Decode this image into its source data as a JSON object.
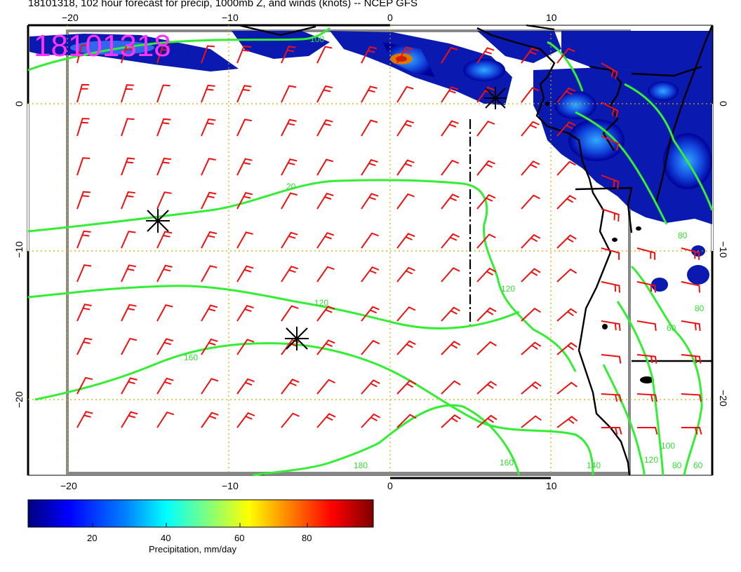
{
  "title": "18101318, 102 hour forecast for precip, 1000mb Z, and winds (knots) -- NCEP GFS",
  "stamp": "18101318",
  "axes": {
    "top_ticks": [
      "−20",
      "−10",
      "0",
      "10"
    ],
    "bottom_ticks": [
      "−20",
      "−10",
      "0",
      "10"
    ],
    "left_ticks": [
      "0",
      "−10",
      "−20"
    ],
    "right_ticks": [
      "0",
      "−10",
      "−20"
    ]
  },
  "contour_labels": [
    "100",
    "20",
    "120",
    "160",
    "180",
    "160",
    "140",
    "120",
    "80",
    "60",
    "80",
    "100",
    "120",
    "80",
    "60"
  ],
  "colorbar": {
    "ticks": [
      "20",
      "40",
      "60",
      "80"
    ],
    "title": "Precipitation, mm/day",
    "colors": [
      "#00007f",
      "#0000ff",
      "#007fff",
      "#00ffff",
      "#7fff7f",
      "#ffff00",
      "#ff7f00",
      "#ff0000",
      "#7f0000"
    ]
  },
  "colors": {
    "contour": "#33ee33",
    "barb": "#ee1111",
    "stamp": "#ff33ff",
    "grid": "#ccaa00"
  }
}
